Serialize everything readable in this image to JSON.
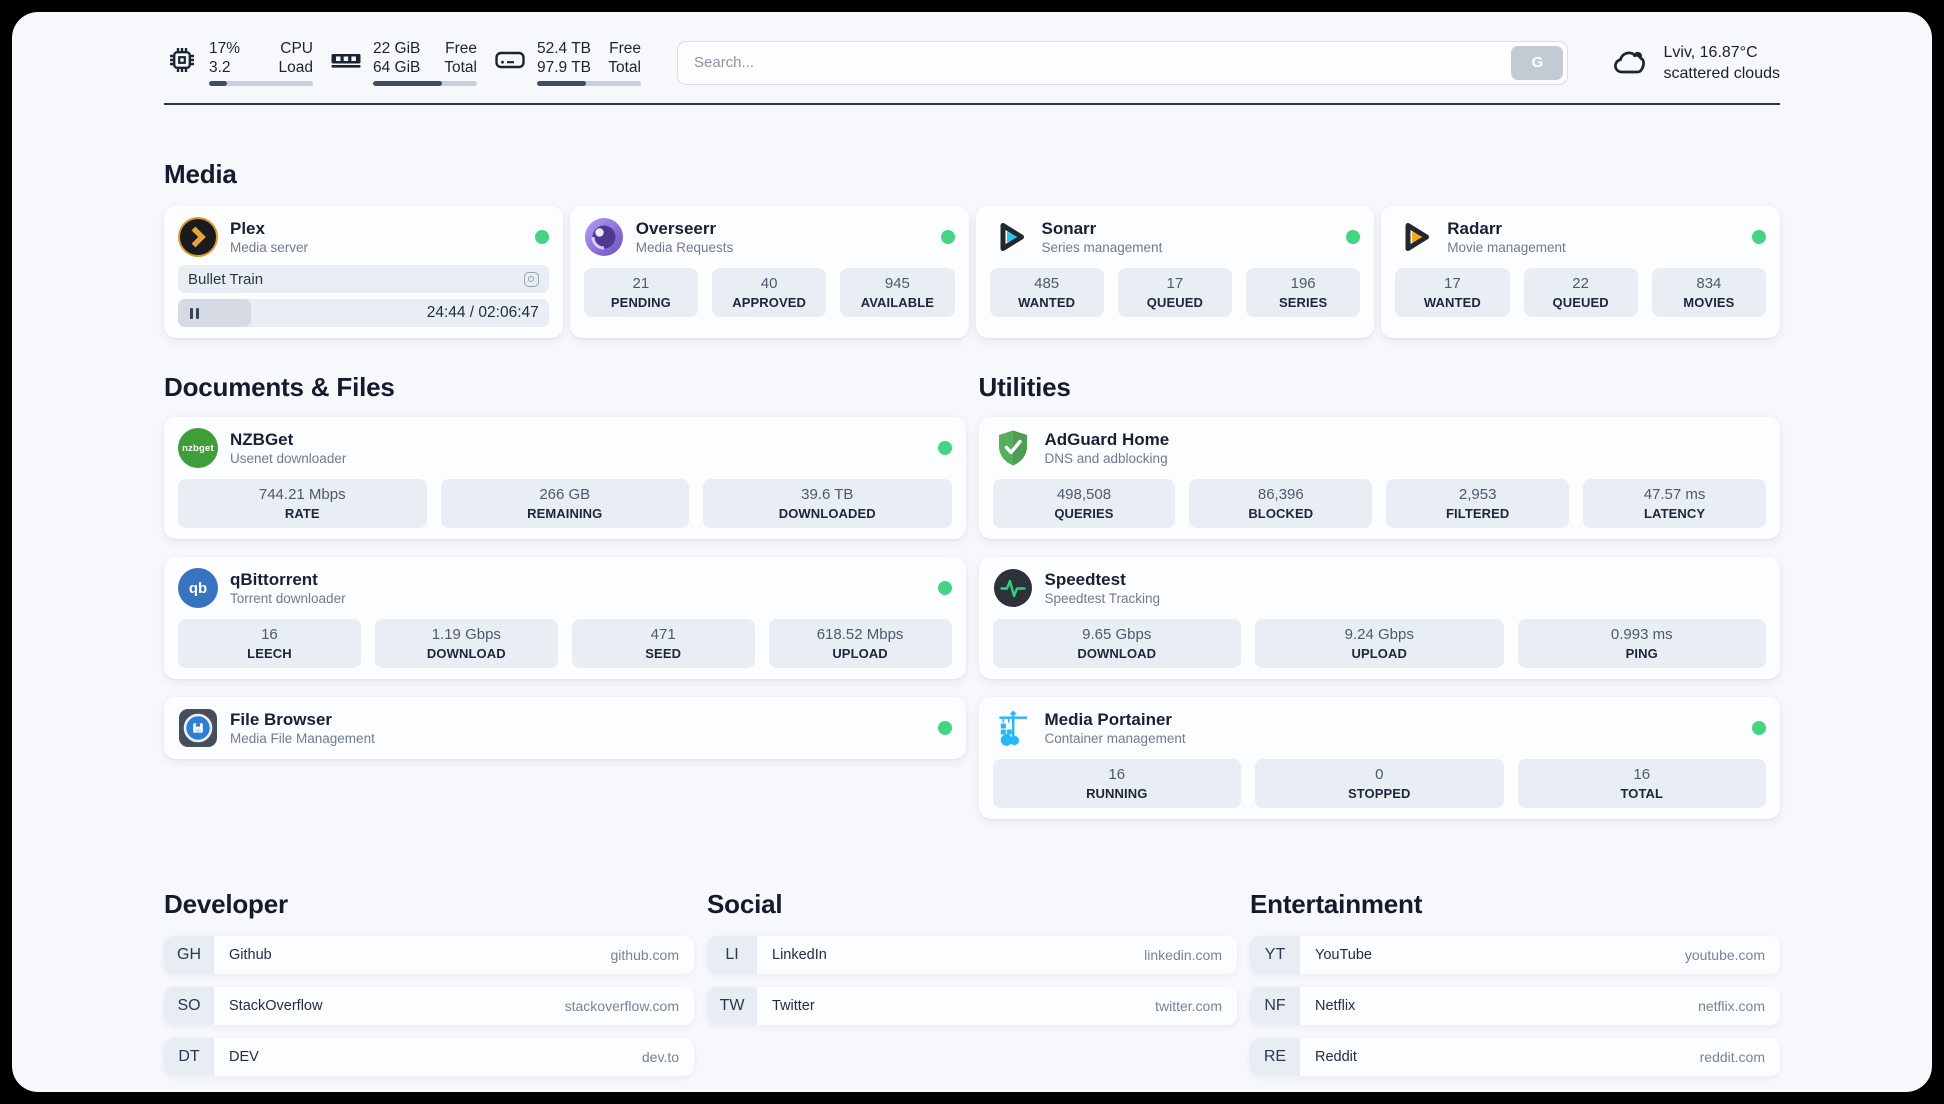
{
  "topbar": {
    "cpu": {
      "value_top": "17%",
      "value_bottom": "3.2",
      "label_top": "CPU",
      "label_bottom": "Load",
      "progress": 17
    },
    "ram": {
      "value_top": "22 GiB",
      "value_bottom": "64 GiB",
      "label_top": "Free",
      "label_bottom": "Total",
      "progress": 66
    },
    "disk": {
      "value_top": "52.4 TB",
      "value_bottom": "97.9 TB",
      "label_top": "Free",
      "label_bottom": "Total",
      "progress": 47
    },
    "search": {
      "placeholder": "Search...",
      "button_label": "G"
    },
    "weather": {
      "location_temp": "Lviv, 16.87°C",
      "condition": "scattered clouds"
    }
  },
  "sections": {
    "media": {
      "title": "Media",
      "apps": [
        {
          "name": "Plex",
          "description": "Media server",
          "online": true,
          "now_playing": {
            "title": "Bullet Train",
            "time": "24:44 / 02:06:47",
            "progress": 19.6
          }
        },
        {
          "name": "Overseerr",
          "description": "Media Requests",
          "online": true,
          "stats": [
            {
              "value": "21",
              "label": "PENDING"
            },
            {
              "value": "40",
              "label": "APPROVED"
            },
            {
              "value": "945",
              "label": "AVAILABLE"
            }
          ]
        },
        {
          "name": "Sonarr",
          "description": "Series management",
          "online": true,
          "stats": [
            {
              "value": "485",
              "label": "WANTED"
            },
            {
              "value": "17",
              "label": "QUEUED"
            },
            {
              "value": "196",
              "label": "SERIES"
            }
          ]
        },
        {
          "name": "Radarr",
          "description": "Movie management",
          "online": true,
          "stats": [
            {
              "value": "17",
              "label": "WANTED"
            },
            {
              "value": "22",
              "label": "QUEUED"
            },
            {
              "value": "834",
              "label": "MOVIES"
            }
          ]
        }
      ]
    },
    "documents": {
      "title": "Documents & Files",
      "apps": [
        {
          "name": "NZBGet",
          "description": "Usenet downloader",
          "online": true,
          "stats": [
            {
              "value": "744.21 Mbps",
              "label": "RATE"
            },
            {
              "value": "266 GB",
              "label": "REMAINING"
            },
            {
              "value": "39.6 TB",
              "label": "DOWNLOADED"
            }
          ]
        },
        {
          "name": "qBittorrent",
          "description": "Torrent downloader",
          "online": true,
          "stats": [
            {
              "value": "16",
              "label": "LEECH"
            },
            {
              "value": "1.19 Gbps",
              "label": "DOWNLOAD"
            },
            {
              "value": "471",
              "label": "SEED"
            },
            {
              "value": "618.52 Mbps",
              "label": "UPLOAD"
            }
          ]
        },
        {
          "name": "File Browser",
          "description": "Media File Management",
          "online": true
        }
      ]
    },
    "utilities": {
      "title": "Utilities",
      "apps": [
        {
          "name": "AdGuard Home",
          "description": "DNS and adblocking",
          "online": false,
          "stats": [
            {
              "value": "498,508",
              "label": "QUERIES"
            },
            {
              "value": "86,396",
              "label": "BLOCKED"
            },
            {
              "value": "2,953",
              "label": "FILTERED"
            },
            {
              "value": "47.57 ms",
              "label": "LATENCY"
            }
          ]
        },
        {
          "name": "Speedtest",
          "description": "Speedtest Tracking",
          "online": false,
          "stats": [
            {
              "value": "9.65 Gbps",
              "label": "DOWNLOAD"
            },
            {
              "value": "9.24 Gbps",
              "label": "UPLOAD"
            },
            {
              "value": "0.993 ms",
              "label": "PING"
            }
          ]
        },
        {
          "name": "Media Portainer",
          "description": "Container management",
          "online": true,
          "stats": [
            {
              "value": "16",
              "label": "RUNNING"
            },
            {
              "value": "0",
              "label": "STOPPED"
            },
            {
              "value": "16",
              "label": "TOTAL"
            }
          ]
        }
      ]
    },
    "developer": {
      "title": "Developer",
      "links": [
        {
          "abbr": "GH",
          "label": "Github",
          "url": "github.com"
        },
        {
          "abbr": "SO",
          "label": "StackOverflow",
          "url": "stackoverflow.com"
        },
        {
          "abbr": "DT",
          "label": "DEV",
          "url": "dev.to"
        }
      ]
    },
    "social": {
      "title": "Social",
      "links": [
        {
          "abbr": "LI",
          "label": "LinkedIn",
          "url": "linkedin.com"
        },
        {
          "abbr": "TW",
          "label": "Twitter",
          "url": "twitter.com"
        }
      ]
    },
    "entertainment": {
      "title": "Entertainment",
      "links": [
        {
          "abbr": "YT",
          "label": "YouTube",
          "url": "youtube.com"
        },
        {
          "abbr": "NF",
          "label": "Netflix",
          "url": "netflix.com"
        },
        {
          "abbr": "RE",
          "label": "Reddit",
          "url": "reddit.com"
        }
      ]
    }
  },
  "colors": {
    "status_online": "#45d483",
    "plex_gold": "#d99b2e",
    "sonarr_cyan": "#27c4ef",
    "radarr_orange": "#f7a81b",
    "nzbget_green": "#3f9e3a",
    "qbittorrent_blue": "#3873c0",
    "adguard_green": "#57ad5c",
    "speedtest_pulse": "#2fd180",
    "portainer_blue": "#2ab6f5",
    "page_background": "#f7f8fc",
    "stat_box": "#e9edf4"
  }
}
